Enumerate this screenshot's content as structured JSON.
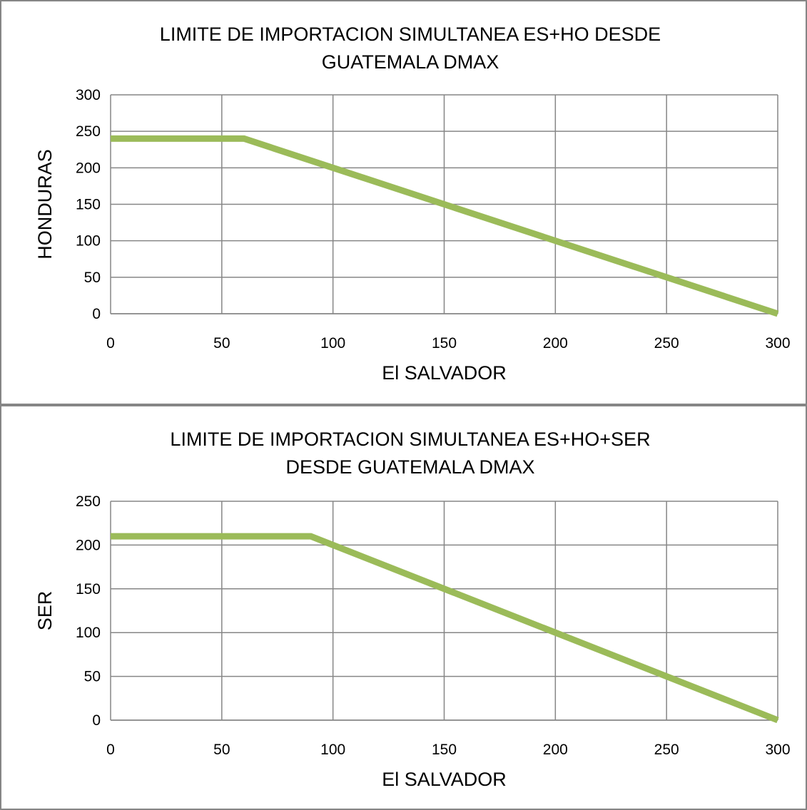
{
  "chart_data": [
    {
      "type": "line",
      "title_lines": [
        "LIMITE DE IMPORTACION SIMULTANEA ES+HO DESDE",
        "GUATEMALA DMAX"
      ],
      "xlabel": "El SALVADOR",
      "ylabel": "HONDURAS",
      "xlim": [
        0,
        300
      ],
      "ylim": [
        0,
        300
      ],
      "x_ticks": [
        0,
        50,
        100,
        150,
        200,
        250,
        300
      ],
      "y_ticks": [
        0,
        50,
        100,
        150,
        200,
        250,
        300
      ],
      "grid": true,
      "legend": "none",
      "series": [
        {
          "color": "#9bbb59",
          "x": [
            0,
            60,
            300
          ],
          "y": [
            240,
            240,
            0
          ]
        }
      ]
    },
    {
      "type": "line",
      "title_lines": [
        "LIMITE DE IMPORTACION SIMULTANEA ES+HO+SER",
        "DESDE GUATEMALA DMAX"
      ],
      "xlabel": "El SALVADOR",
      "ylabel": "SER",
      "xlim": [
        0,
        300
      ],
      "ylim": [
        0,
        250
      ],
      "x_ticks": [
        0,
        50,
        100,
        150,
        200,
        250,
        300
      ],
      "y_ticks": [
        0,
        50,
        100,
        150,
        200,
        250
      ],
      "grid": true,
      "legend": "none",
      "series": [
        {
          "color": "#9bbb59",
          "x": [
            0,
            90,
            300
          ],
          "y": [
            210,
            210,
            0
          ]
        }
      ]
    }
  ]
}
